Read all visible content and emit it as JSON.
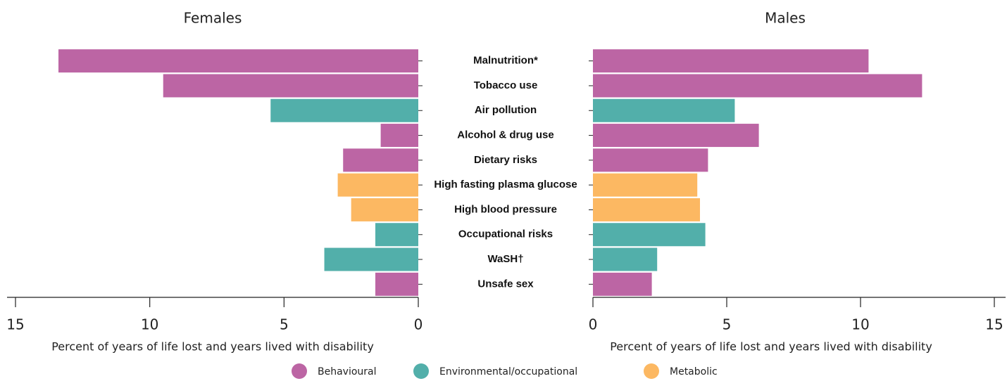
{
  "chart_data": {
    "type": "bar",
    "orientation": "horizontal",
    "categories": [
      "Malnutrition*",
      "Tobacco use",
      "Air pollution",
      "Alcohol & drug use",
      "Dietary risks",
      "High fasting plasma glucose",
      "High blood pressure",
      "Occupational risks",
      "WaSH†",
      "Unsafe sex"
    ],
    "category_groups": [
      "Behavioural",
      "Behavioural",
      "Environmental/occupational",
      "Behavioural",
      "Behavioural",
      "Metabolic",
      "Metabolic",
      "Environmental/occupational",
      "Environmental/occupational",
      "Behavioural"
    ],
    "legend": [
      {
        "name": "Behavioural",
        "color": "#bc65a4"
      },
      {
        "name": "Environmental/occupational",
        "color": "#52afaa"
      },
      {
        "name": "Metabolic",
        "color": "#fcb862"
      }
    ],
    "panels": [
      {
        "title": "Females",
        "values": [
          13.4,
          9.5,
          5.5,
          1.4,
          2.8,
          3.0,
          2.5,
          1.6,
          3.5,
          1.6
        ],
        "xlim": [
          0,
          15
        ],
        "xticks": [
          15,
          10,
          5,
          0
        ],
        "reversed": true,
        "xlabel": "Percent of years of life lost and years lived with disability"
      },
      {
        "title": "Males",
        "values": [
          10.3,
          12.3,
          5.3,
          6.2,
          4.3,
          3.9,
          4.0,
          4.2,
          2.4,
          2.2
        ],
        "xlim": [
          0,
          15
        ],
        "xticks": [
          0,
          5,
          10,
          15
        ],
        "reversed": false,
        "xlabel": "Percent of years of life lost and years lived with disability"
      }
    ]
  }
}
